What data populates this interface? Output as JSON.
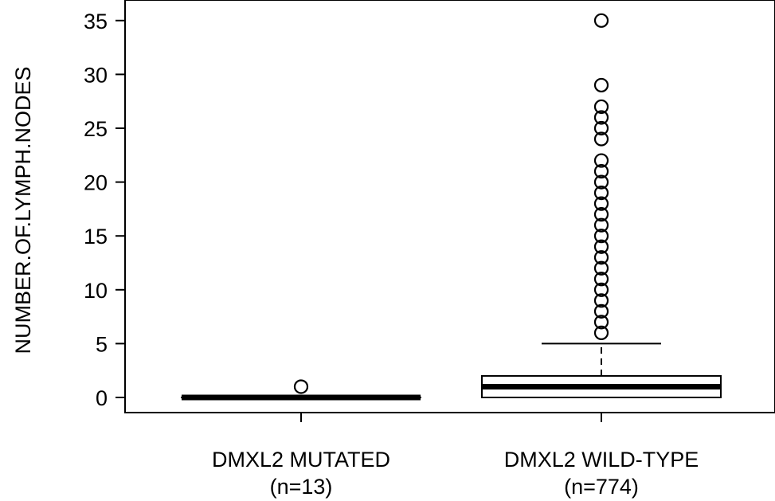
{
  "chart_data": {
    "type": "boxplot",
    "title": "",
    "xlabel": "",
    "ylabel": "NUMBER.OF.LYMPH.NODES",
    "ylim": [
      -1.3,
      36.3
    ],
    "yticks": [
      0,
      5,
      10,
      15,
      20,
      25,
      30,
      35
    ],
    "grid": false,
    "groups": [
      {
        "label": "DMXL2 MUTATED",
        "n_label": "(n=13)",
        "min": 0,
        "q1": 0,
        "median": 0,
        "q3": 0,
        "max": 0,
        "outliers": [
          1
        ]
      },
      {
        "label": "DMXL2 WILD-TYPE",
        "n_label": "(n=774)",
        "min": 0,
        "q1": 0,
        "median": 1,
        "q3": 2,
        "max": 5,
        "outliers": [
          6,
          7,
          8,
          9,
          10,
          11,
          12,
          13,
          14,
          15,
          16,
          17,
          18,
          19,
          20,
          21,
          22,
          24,
          25,
          26,
          27,
          29,
          35
        ]
      }
    ]
  }
}
